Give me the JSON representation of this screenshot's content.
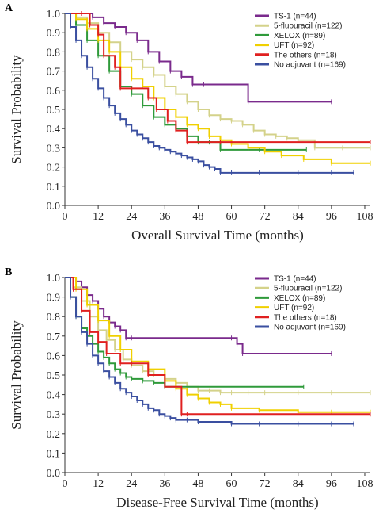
{
  "chart_data": [
    {
      "type": "line",
      "panel_label": "A",
      "xlabel": "Overall Survival Time (months)",
      "ylabel": "Survival Probability",
      "xlim": [
        0,
        110
      ],
      "ylim": [
        0.0,
        1.0
      ],
      "xticks": [
        0,
        12,
        24,
        36,
        48,
        60,
        72,
        84,
        96,
        108
      ],
      "yticks": [
        0.0,
        0.1,
        0.2,
        0.3,
        0.4,
        0.5,
        0.6,
        0.7,
        0.8,
        0.9,
        1.0
      ],
      "legend_position": "top-right",
      "series": [
        {
          "name": "TS-1 (n=44)",
          "color": "#7a2a8c",
          "x": [
            0,
            6,
            10,
            14,
            18,
            22,
            26,
            30,
            34,
            38,
            42,
            46,
            50,
            66,
            96
          ],
          "y": [
            1.0,
            1.0,
            0.98,
            0.95,
            0.93,
            0.9,
            0.86,
            0.8,
            0.75,
            0.7,
            0.67,
            0.63,
            0.63,
            0.54,
            0.54
          ]
        },
        {
          "name": "5-fluouracil (n=122)",
          "color": "#d4d28a",
          "x": [
            0,
            4,
            8,
            12,
            16,
            20,
            24,
            28,
            32,
            36,
            40,
            44,
            48,
            52,
            56,
            60,
            64,
            68,
            72,
            76,
            80,
            84,
            90,
            100,
            110
          ],
          "y": [
            1.0,
            0.98,
            0.95,
            0.9,
            0.85,
            0.8,
            0.76,
            0.72,
            0.68,
            0.62,
            0.58,
            0.54,
            0.5,
            0.47,
            0.45,
            0.44,
            0.42,
            0.39,
            0.37,
            0.36,
            0.35,
            0.34,
            0.3,
            0.3,
            0.3
          ]
        },
        {
          "name": "XELOX (n=89)",
          "color": "#2f9a3a",
          "x": [
            0,
            4,
            8,
            12,
            16,
            20,
            24,
            28,
            32,
            36,
            40,
            44,
            48,
            52,
            56,
            70,
            87
          ],
          "y": [
            1.0,
            0.94,
            0.86,
            0.78,
            0.7,
            0.62,
            0.58,
            0.52,
            0.46,
            0.42,
            0.4,
            0.36,
            0.33,
            0.33,
            0.29,
            0.29,
            0.29
          ]
        },
        {
          "name": "UFT (n=92)",
          "color": "#f0d000",
          "x": [
            0,
            4,
            8,
            12,
            16,
            20,
            24,
            28,
            32,
            36,
            40,
            44,
            48,
            52,
            56,
            60,
            66,
            72,
            78,
            86,
            96,
            110
          ],
          "y": [
            1.0,
            0.97,
            0.92,
            0.86,
            0.8,
            0.72,
            0.66,
            0.62,
            0.56,
            0.5,
            0.46,
            0.42,
            0.4,
            0.36,
            0.34,
            0.32,
            0.3,
            0.28,
            0.26,
            0.24,
            0.22,
            0.22
          ]
        },
        {
          "name": "The others (n=18)",
          "color": "#e02020",
          "x": [
            0,
            6,
            9,
            12,
            14,
            18,
            20,
            24,
            30,
            33,
            37,
            40,
            44,
            56,
            110
          ],
          "y": [
            1.0,
            1.0,
            0.94,
            0.89,
            0.78,
            0.72,
            0.61,
            0.61,
            0.56,
            0.5,
            0.44,
            0.39,
            0.33,
            0.33,
            0.33
          ]
        },
        {
          "name": "No adjuvant (n=169)",
          "color": "#3a4fa0",
          "x": [
            0,
            2,
            4,
            6,
            8,
            10,
            12,
            14,
            16,
            18,
            20,
            22,
            24,
            26,
            28,
            30,
            32,
            34,
            36,
            38,
            40,
            42,
            44,
            46,
            48,
            50,
            52,
            54,
            56,
            60,
            70,
            84,
            96,
            104
          ],
          "y": [
            1.0,
            0.93,
            0.86,
            0.78,
            0.72,
            0.66,
            0.61,
            0.56,
            0.52,
            0.48,
            0.45,
            0.42,
            0.39,
            0.37,
            0.35,
            0.33,
            0.31,
            0.3,
            0.29,
            0.28,
            0.27,
            0.26,
            0.25,
            0.24,
            0.23,
            0.21,
            0.2,
            0.19,
            0.17,
            0.17,
            0.17,
            0.17,
            0.17,
            0.17
          ]
        }
      ]
    },
    {
      "type": "line",
      "panel_label": "B",
      "xlabel": "Disease-Free Survival Time (months)",
      "ylabel": "Survival Probability",
      "xlim": [
        0,
        110
      ],
      "ylim": [
        0.0,
        1.0
      ],
      "xticks": [
        0,
        12,
        24,
        36,
        48,
        60,
        72,
        84,
        96,
        108
      ],
      "yticks": [
        0.0,
        0.1,
        0.2,
        0.3,
        0.4,
        0.5,
        0.6,
        0.7,
        0.8,
        0.9,
        1.0
      ],
      "legend_position": "top-right",
      "series": [
        {
          "name": "TS-1 (n=44)",
          "color": "#7a2a8c",
          "x": [
            0,
            4,
            6,
            8,
            10,
            12,
            14,
            16,
            18,
            20,
            22,
            24,
            60,
            62,
            64,
            96
          ],
          "y": [
            1.0,
            0.98,
            0.95,
            0.91,
            0.88,
            0.84,
            0.8,
            0.77,
            0.75,
            0.73,
            0.69,
            0.69,
            0.69,
            0.66,
            0.61,
            0.61
          ]
        },
        {
          "name": "5-fluouracil (n=122)",
          "color": "#d4d28a",
          "x": [
            0,
            3,
            6,
            9,
            12,
            15,
            18,
            21,
            24,
            28,
            32,
            36,
            40,
            44,
            48,
            52,
            56,
            60,
            66,
            72,
            84,
            96,
            110
          ],
          "y": [
            1.0,
            0.95,
            0.88,
            0.8,
            0.73,
            0.68,
            0.63,
            0.58,
            0.55,
            0.52,
            0.5,
            0.48,
            0.46,
            0.44,
            0.42,
            0.42,
            0.41,
            0.41,
            0.41,
            0.41,
            0.41,
            0.41,
            0.41
          ]
        },
        {
          "name": "XELOX (n=89)",
          "color": "#2f9a3a",
          "x": [
            0,
            2,
            4,
            6,
            8,
            10,
            12,
            14,
            16,
            18,
            20,
            22,
            24,
            28,
            32,
            36,
            40,
            86
          ],
          "y": [
            1.0,
            0.9,
            0.8,
            0.74,
            0.7,
            0.66,
            0.62,
            0.59,
            0.56,
            0.53,
            0.51,
            0.49,
            0.48,
            0.47,
            0.46,
            0.44,
            0.44,
            0.44
          ]
        },
        {
          "name": "UFT (n=92)",
          "color": "#f0d000",
          "x": [
            0,
            4,
            8,
            12,
            16,
            20,
            24,
            30,
            36,
            40,
            44,
            48,
            52,
            56,
            60,
            70,
            84,
            96,
            110
          ],
          "y": [
            1.0,
            0.94,
            0.86,
            0.78,
            0.7,
            0.63,
            0.57,
            0.53,
            0.47,
            0.43,
            0.4,
            0.38,
            0.36,
            0.35,
            0.33,
            0.32,
            0.31,
            0.31,
            0.31
          ]
        },
        {
          "name": "The others (n=18)",
          "color": "#e02020",
          "x": [
            0,
            3,
            6,
            9,
            12,
            15,
            20,
            24,
            30,
            36,
            42,
            44,
            110
          ],
          "y": [
            1.0,
            0.94,
            0.83,
            0.72,
            0.67,
            0.61,
            0.56,
            0.56,
            0.5,
            0.44,
            0.3,
            0.3,
            0.3
          ]
        },
        {
          "name": "No adjuvant (n=169)",
          "color": "#3a4fa0",
          "x": [
            0,
            2,
            4,
            6,
            8,
            10,
            12,
            14,
            16,
            18,
            20,
            22,
            24,
            26,
            28,
            30,
            32,
            34,
            36,
            38,
            40,
            44,
            48,
            60,
            70,
            84,
            96,
            104
          ],
          "y": [
            1.0,
            0.9,
            0.8,
            0.72,
            0.66,
            0.6,
            0.56,
            0.52,
            0.49,
            0.46,
            0.43,
            0.41,
            0.39,
            0.37,
            0.35,
            0.33,
            0.32,
            0.3,
            0.29,
            0.28,
            0.27,
            0.27,
            0.26,
            0.25,
            0.25,
            0.25,
            0.25,
            0.25
          ]
        }
      ]
    }
  ]
}
